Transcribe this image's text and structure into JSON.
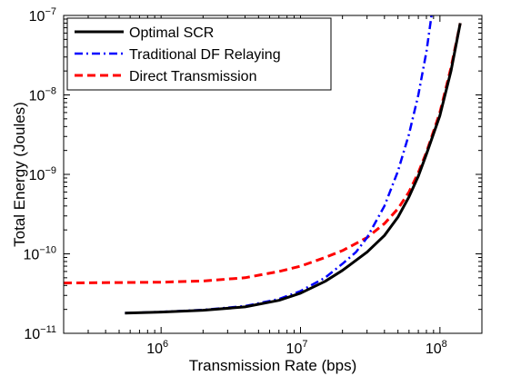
{
  "chart_data": {
    "type": "line",
    "xlabel": "Transmission Rate (bps)",
    "ylabel": "Total Energy (Joules)",
    "x_scale": "log",
    "y_scale": "log",
    "xlim": [
      200000,
      200000000
    ],
    "ylim": [
      1e-11,
      1e-07
    ],
    "x_ticks": [
      {
        "value": 1000000,
        "base": "10",
        "exp": "6"
      },
      {
        "value": 10000000,
        "base": "10",
        "exp": "7"
      },
      {
        "value": 100000000,
        "base": "10",
        "exp": "8"
      }
    ],
    "y_ticks": [
      {
        "value": 1e-11,
        "base": "10",
        "exp": "−11"
      },
      {
        "value": 1e-10,
        "base": "10",
        "exp": "−10"
      },
      {
        "value": 1e-09,
        "base": "10",
        "exp": "−9"
      },
      {
        "value": 1e-08,
        "base": "10",
        "exp": "−8"
      },
      {
        "value": 1e-07,
        "base": "10",
        "exp": "−7"
      }
    ],
    "grid": false,
    "legend_position": "top-left",
    "series": [
      {
        "name": "Optimal SCR",
        "color": "#000000",
        "style": "solid",
        "x": [
          550000,
          1000000,
          2000000,
          4000000,
          7000000,
          10000000,
          15000000,
          20000000,
          30000000,
          40000000,
          50000000,
          60000000,
          70000000,
          80000000,
          100000000,
          120000000,
          140000000
        ],
        "y": [
          1.8e-11,
          1.85e-11,
          1.95e-11,
          2.15e-11,
          2.6e-11,
          3.2e-11,
          4.5e-11,
          6.2e-11,
          1.05e-10,
          1.7e-10,
          2.9e-10,
          5.2e-10,
          9.5e-10,
          1.8e-09,
          5.5e-09,
          2e-08,
          8e-08
        ]
      },
      {
        "name": "Traditional DF Relaying",
        "color": "#0000ff",
        "style": "dashdot",
        "x": [
          550000,
          1000000,
          2000000,
          4000000,
          7000000,
          10000000,
          15000000,
          20000000,
          25000000,
          30000000,
          40000000,
          50000000,
          60000000,
          70000000,
          80000000,
          87000000
        ],
        "y": [
          1.8e-11,
          1.86e-11,
          1.97e-11,
          2.2e-11,
          2.7e-11,
          3.4e-11,
          5e-11,
          7.5e-11,
          1.05e-10,
          1.6e-10,
          4e-10,
          1.1e-09,
          3.2e-09,
          1e-08,
          3.5e-08,
          1e-07
        ]
      },
      {
        "name": "Direct Transmission",
        "color": "#ff0000",
        "style": "dashed",
        "x": [
          200000,
          500000,
          1000000,
          2000000,
          4000000,
          7000000,
          10000000,
          15000000,
          20000000,
          30000000,
          40000000,
          50000000,
          60000000,
          70000000,
          80000000,
          100000000,
          120000000,
          140000000
        ],
        "y": [
          4.3e-11,
          4.35e-11,
          4.4e-11,
          4.55e-11,
          5e-11,
          6e-11,
          7e-11,
          9e-11,
          1.1e-10,
          1.6e-10,
          2.4e-10,
          3.7e-10,
          6e-10,
          1.05e-09,
          1.9e-09,
          6e-09,
          2.2e-08,
          8e-08
        ]
      }
    ]
  }
}
